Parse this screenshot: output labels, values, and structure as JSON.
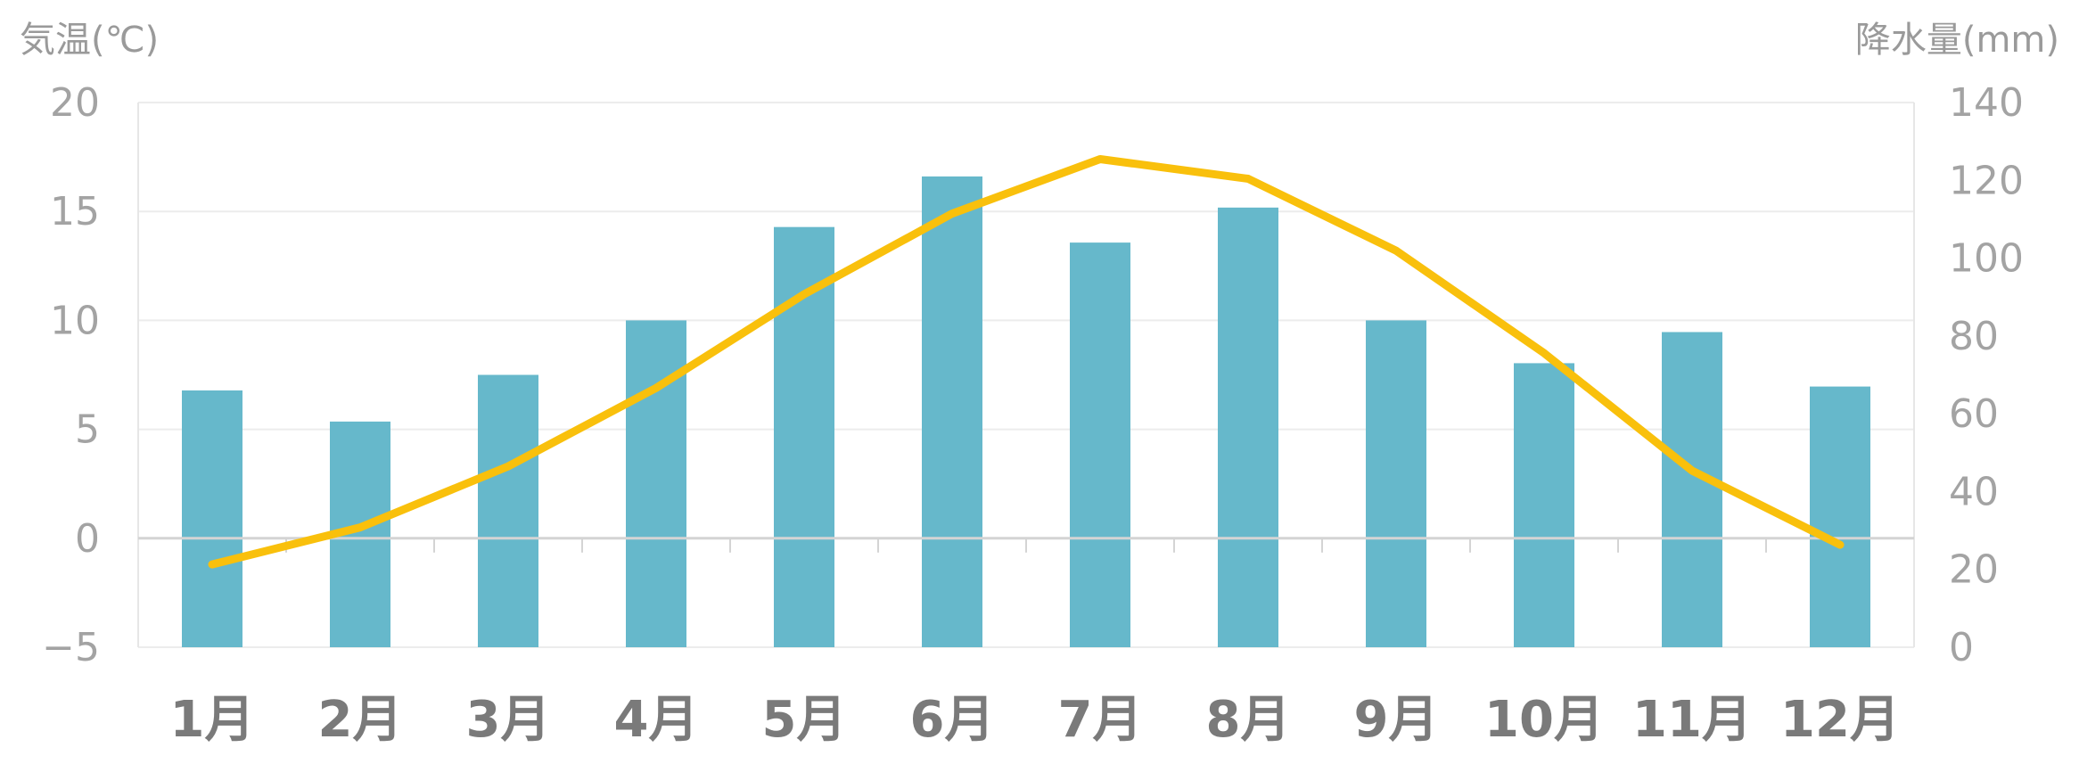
{
  "chart_data": {
    "type": "bar",
    "categories": [
      "1月",
      "2月",
      "3月",
      "4月",
      "5月",
      "6月",
      "7月",
      "8月",
      "9月",
      "10月",
      "11月",
      "12月"
    ],
    "series": [
      {
        "kind": "bar",
        "axis": "right",
        "color": "#66b8cb",
        "values": [
          66,
          58,
          70,
          84,
          108,
          121,
          104,
          113,
          84,
          73,
          81,
          67
        ]
      },
      {
        "kind": "line",
        "axis": "left",
        "color": "#f9c00c",
        "values": [
          -1.2,
          0.5,
          3.3,
          6.9,
          11.2,
          14.9,
          17.4,
          16.5,
          13.2,
          8.5,
          3.1,
          -0.3
        ]
      }
    ],
    "y_left": {
      "label": "気温(℃)",
      "ylim": [
        -5,
        20
      ],
      "ticks": [
        "−5",
        "0",
        "5",
        "10",
        "15",
        "20"
      ]
    },
    "y_right": {
      "label": "降水量(mm)",
      "ylim": [
        0,
        140
      ],
      "ticks": [
        "0",
        "20",
        "40",
        "60",
        "80",
        "100",
        "120",
        "140"
      ]
    },
    "grid": true,
    "legend": "none"
  }
}
